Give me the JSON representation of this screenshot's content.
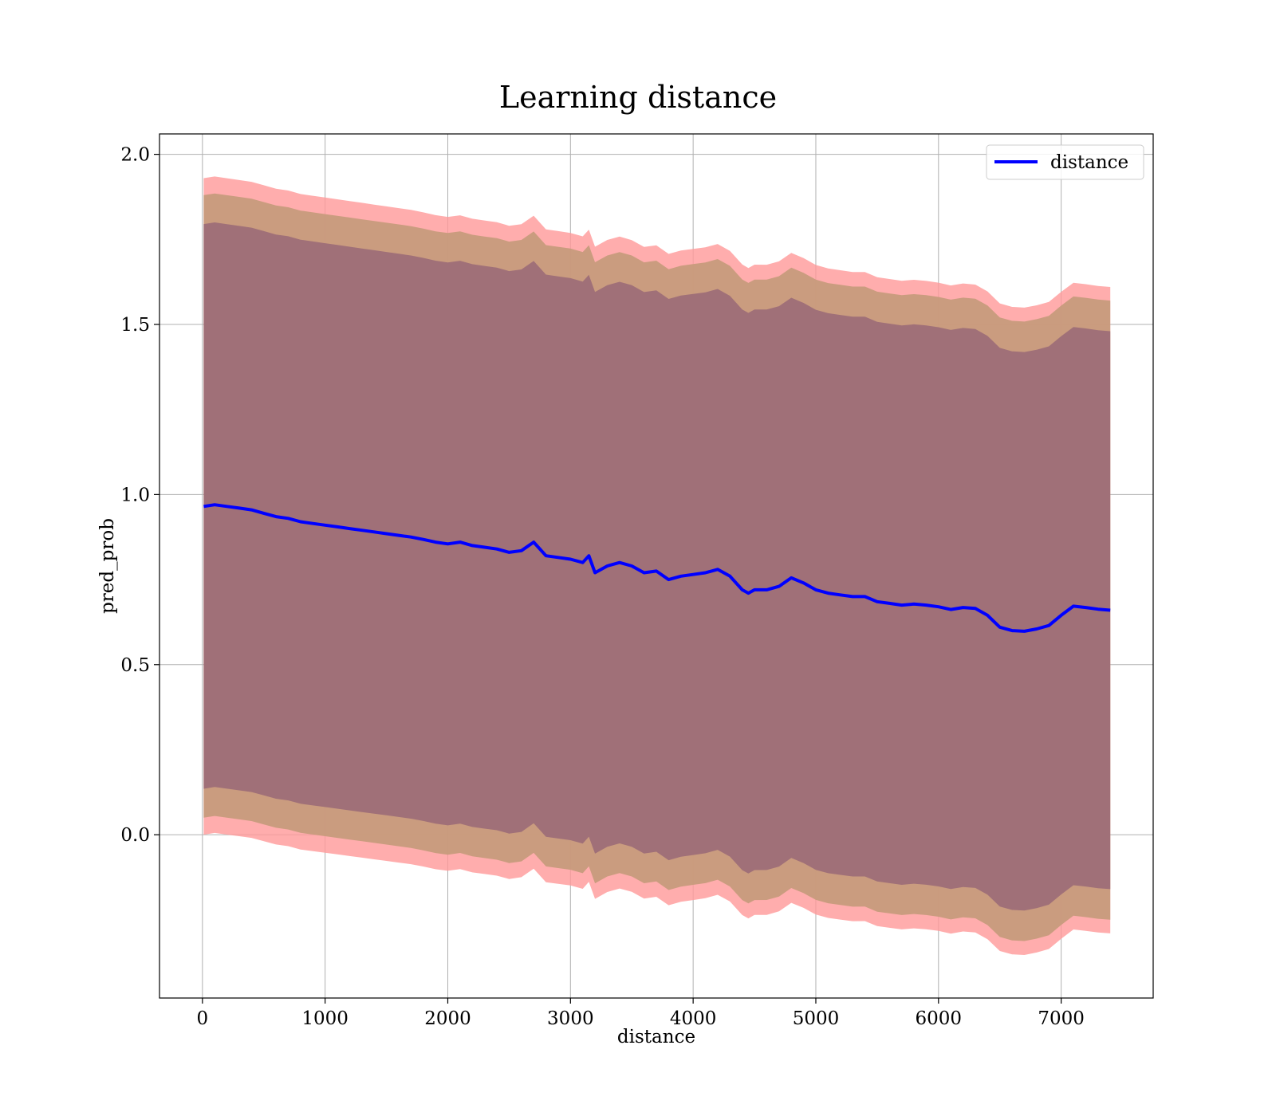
{
  "chart_data": {
    "type": "line",
    "title": "Learning distance",
    "xlabel": "distance",
    "ylabel": "pred_prob",
    "xlim": [
      -350,
      7750
    ],
    "ylim": [
      -0.48,
      2.06
    ],
    "xticks": [
      0,
      1000,
      2000,
      3000,
      4000,
      5000,
      6000,
      7000
    ],
    "xtick_labels": [
      "0",
      "1000",
      "2000",
      "3000",
      "4000",
      "5000",
      "6000",
      "7000"
    ],
    "yticks": [
      0.0,
      0.5,
      1.0,
      1.5,
      2.0
    ],
    "ytick_labels": [
      "0.0",
      "0.5",
      "1.0",
      "1.5",
      "2.0"
    ],
    "grid": true,
    "legend": {
      "placement": "top-right",
      "entries": [
        "distance"
      ]
    },
    "colors": {
      "line": "#0000ff",
      "band_outer": "#ff9999",
      "band_middle": "#c49a7a",
      "band_inner": "#a07078",
      "grid": "#b0b0b0"
    },
    "series": [
      {
        "name": "distance",
        "x": [
          10,
          100,
          200,
          300,
          400,
          500,
          600,
          700,
          800,
          900,
          1000,
          1100,
          1200,
          1300,
          1400,
          1500,
          1600,
          1700,
          1800,
          1900,
          2000,
          2100,
          2200,
          2300,
          2400,
          2500,
          2600,
          2700,
          2800,
          2900,
          3000,
          3100,
          3150,
          3200,
          3300,
          3400,
          3500,
          3600,
          3700,
          3800,
          3900,
          4000,
          4100,
          4200,
          4300,
          4400,
          4450,
          4500,
          4600,
          4700,
          4800,
          4900,
          5000,
          5100,
          5200,
          5300,
          5400,
          5500,
          5600,
          5700,
          5800,
          5900,
          6000,
          6100,
          6200,
          6300,
          6400,
          6500,
          6600,
          6700,
          6800,
          6900,
          7000,
          7100,
          7200,
          7300,
          7400
        ],
        "y": [
          0.965,
          0.97,
          0.965,
          0.96,
          0.955,
          0.945,
          0.935,
          0.93,
          0.92,
          0.915,
          0.91,
          0.905,
          0.9,
          0.895,
          0.89,
          0.885,
          0.88,
          0.875,
          0.868,
          0.86,
          0.855,
          0.86,
          0.85,
          0.845,
          0.84,
          0.83,
          0.835,
          0.86,
          0.82,
          0.815,
          0.81,
          0.8,
          0.82,
          0.77,
          0.79,
          0.8,
          0.79,
          0.77,
          0.775,
          0.75,
          0.76,
          0.765,
          0.77,
          0.78,
          0.76,
          0.72,
          0.71,
          0.72,
          0.72,
          0.73,
          0.755,
          0.74,
          0.72,
          0.71,
          0.705,
          0.7,
          0.7,
          0.685,
          0.68,
          0.675,
          0.678,
          0.675,
          0.67,
          0.662,
          0.668,
          0.665,
          0.645,
          0.61,
          0.6,
          0.598,
          0.605,
          0.615,
          0.645,
          0.672,
          0.668,
          0.663,
          0.66
        ]
      }
    ],
    "bands": [
      {
        "name": "outer",
        "offset": [
          0.965,
          0.95
        ]
      },
      {
        "name": "middle",
        "offset": [
          0.915,
          0.91
        ]
      },
      {
        "name": "inner",
        "offset": [
          0.83,
          0.82
        ]
      }
    ]
  }
}
